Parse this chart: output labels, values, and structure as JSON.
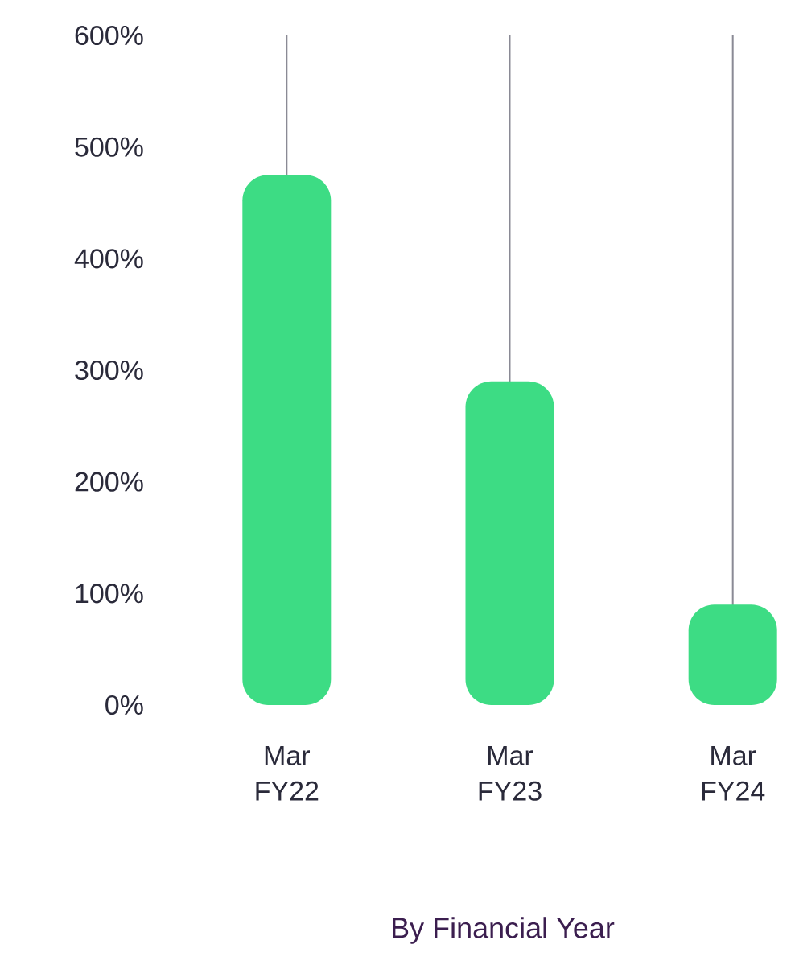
{
  "chart_data": {
    "type": "bar",
    "xlabel": "By Financial Year",
    "categories": [
      "Mar FY22",
      "Mar FY23",
      "Mar FY24"
    ],
    "values": [
      475,
      290,
      90
    ],
    "color": "#3ddc84",
    "ylim": [
      0,
      600
    ],
    "yticks": [
      {
        "value": 0,
        "label": "0%"
      },
      {
        "value": 100,
        "label": "100%"
      },
      {
        "value": 200,
        "label": "200%"
      },
      {
        "value": 300,
        "label": "300%"
      },
      {
        "value": 400,
        "label": "400%"
      },
      {
        "value": 500,
        "label": "500%"
      },
      {
        "value": 600,
        "label": "600%"
      }
    ],
    "grid": "x"
  }
}
